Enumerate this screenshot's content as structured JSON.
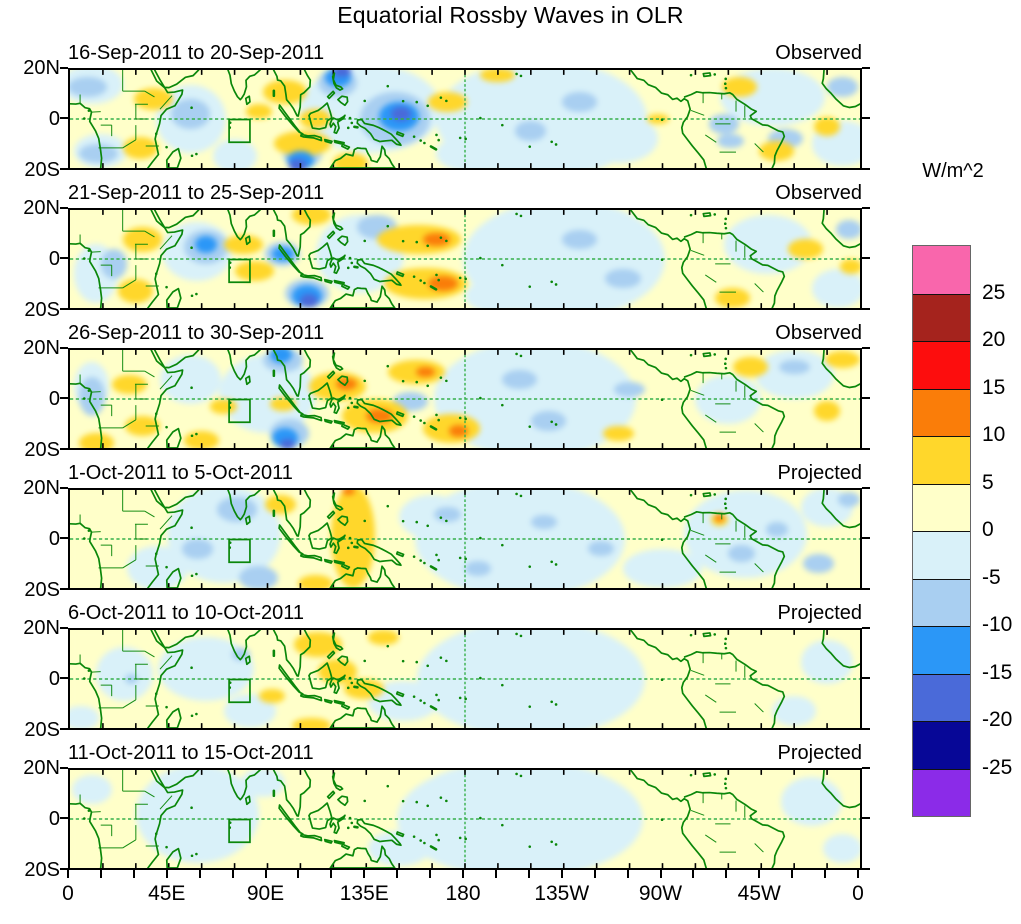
{
  "title": "Equatorial Rossby Waves in OLR",
  "colorbar": {
    "title": "W/m^2",
    "tick_labels": [
      "25",
      "20",
      "15",
      "10",
      "5",
      "0",
      "-5",
      "-10",
      "-15",
      "-20",
      "-25"
    ],
    "segment_colors_top_to_bottom": [
      "#F966AC",
      "#A5231D",
      "#FD0D0D",
      "#FA7D09",
      "#FFD72B",
      "#FFFFC9",
      "#D9F1F9",
      "#A9CFF1",
      "#2B97F7",
      "#4A6AD9",
      "#070797",
      "#8B2BE8"
    ]
  },
  "x_axis": {
    "tick_labels": [
      "0",
      "45E",
      "90E",
      "135E",
      "180",
      "135W",
      "90W",
      "45W",
      "0"
    ]
  },
  "y_axis": {
    "tick_labels": [
      "20N",
      "0",
      "20S"
    ]
  },
  "map_style": {
    "coastline_color": "#0A870A",
    "gridline_color": "#35B04A",
    "base_fill": "#FFFFC9",
    "marker_box": {
      "lon_min": 72.5,
      "lon_max": 82,
      "lat_min": -9.5,
      "lat_max": -0.2
    }
  },
  "palette": {
    "y1": "#FFFFC9",
    "c1": "#D9F1F9",
    "b1": "#A9CFF1",
    "b2": "#2B97F7",
    "b3": "#4A6AD9",
    "b4": "#070797",
    "pr": "#8B2BE8",
    "g1": "#FFD72B",
    "o1": "#FA7D09",
    "r1": "#FD0D0D",
    "dr": "#A5231D",
    "pk": "#F966AC"
  },
  "chart_data": {
    "type": "heatmap",
    "subtype": "filled-contour longitude-latitude anomaly maps",
    "units": "W/m^2",
    "lon_range": [
      0,
      360
    ],
    "lat_range": [
      -20,
      20
    ],
    "contour_levels": [
      -25,
      -20,
      -15,
      -10,
      -5,
      0,
      5,
      10,
      15,
      20,
      25
    ],
    "dashed_reference_lines": {
      "equator_lat": 0,
      "dateline_lon": 180
    },
    "panels": [
      {
        "date_range": "16-Sep-2011 to 20-Sep-2011",
        "source": "Observed",
        "blobs": [
          [
            55,
            0,
            16,
            14,
            "c1"
          ],
          [
            10,
            14,
            14,
            8,
            "c1"
          ],
          [
            14,
            -13,
            12,
            7,
            "c1"
          ],
          [
            75,
            -15,
            10,
            7,
            "c1"
          ],
          [
            137,
            4,
            32,
            18,
            "c1"
          ],
          [
            215,
            0,
            48,
            24,
            "c1"
          ],
          [
            320,
            9,
            24,
            12,
            "c1"
          ],
          [
            352,
            -10,
            14,
            9,
            "c1"
          ],
          [
            185,
            -14,
            18,
            8,
            "c1"
          ],
          [
            250,
            -8,
            18,
            10,
            "c1"
          ],
          [
            8,
            13,
            9,
            4,
            "b1"
          ],
          [
            13,
            -14,
            9,
            4,
            "b1"
          ],
          [
            55,
            2,
            9,
            6,
            "b1"
          ],
          [
            148,
            0,
            16,
            11,
            "b1"
          ],
          [
            122,
            15,
            9,
            6,
            "b1"
          ],
          [
            106,
            -14,
            9,
            6,
            "b1"
          ],
          [
            298,
            -2,
            7,
            4,
            "b1"
          ],
          [
            301,
            -9,
            6,
            3,
            "b1"
          ],
          [
            326,
            -8,
            8,
            4,
            "b1"
          ],
          [
            352,
            13,
            7,
            4,
            "b1"
          ],
          [
            232,
            7,
            8,
            4,
            "b1"
          ],
          [
            210,
            -5,
            7,
            4,
            "b1"
          ],
          [
            38,
            8,
            9,
            4.5,
            "g1"
          ],
          [
            32,
            -12,
            8,
            4.5,
            "g1"
          ],
          [
            98,
            11,
            10,
            5,
            "g1"
          ],
          [
            112,
            0,
            7,
            4,
            "g1"
          ],
          [
            106,
            -10,
            13,
            5,
            "g1"
          ],
          [
            128,
            -18,
            8,
            4,
            "g1"
          ],
          [
            86,
            3,
            6,
            3,
            "g1"
          ],
          [
            305,
            13,
            8,
            4,
            "g1"
          ],
          [
            268,
            0,
            5,
            2,
            "g1"
          ],
          [
            322,
            -13,
            8,
            4,
            "g1"
          ],
          [
            345,
            -3,
            6,
            4,
            "g1"
          ],
          [
            172,
            7,
            9,
            4,
            "g1"
          ],
          [
            195,
            18,
            8,
            3,
            "g1"
          ],
          [
            150,
            1,
            9,
            6,
            "b2"
          ],
          [
            122,
            17,
            6,
            4,
            "b2"
          ],
          [
            105,
            -17,
            6,
            4,
            "b2"
          ],
          [
            151,
            2,
            4.5,
            3,
            "b3"
          ],
          [
            124,
            19.5,
            4,
            2.5,
            "b3"
          ],
          [
            104,
            -19,
            4,
            2.5,
            "b3"
          ]
        ]
      },
      {
        "date_range": "21-Sep-2011 to 25-Sep-2011",
        "source": "Observed",
        "blobs": [
          [
            58,
            3,
            16,
            12,
            "c1"
          ],
          [
            12,
            -6,
            10,
            12,
            "c1"
          ],
          [
            225,
            0,
            46,
            24,
            "c1"
          ],
          [
            318,
            6,
            20,
            12,
            "c1"
          ],
          [
            350,
            -12,
            12,
            8,
            "c1"
          ],
          [
            132,
            2,
            20,
            16,
            "c1"
          ],
          [
            195,
            -15,
            15,
            7,
            "c1"
          ],
          [
            62,
            5,
            10,
            7,
            "b1"
          ],
          [
            97,
            2,
            8,
            5,
            "b1"
          ],
          [
            108,
            -14,
            10,
            6,
            "b1"
          ],
          [
            140,
            13,
            9,
            5,
            "b1"
          ],
          [
            20,
            -2,
            6,
            6,
            "b1"
          ],
          [
            232,
            8,
            8,
            4,
            "b1"
          ],
          [
            252,
            -8,
            8,
            4,
            "b1"
          ],
          [
            355,
            12,
            6,
            4,
            "b1"
          ],
          [
            33,
            8,
            9,
            5,
            "g1"
          ],
          [
            30,
            -13,
            8,
            5,
            "g1"
          ],
          [
            79,
            6,
            9,
            4,
            "g1"
          ],
          [
            84,
            -5,
            9,
            4,
            "g1"
          ],
          [
            110,
            18,
            9,
            4,
            "g1"
          ],
          [
            159,
            8,
            19,
            6,
            "g1"
          ],
          [
            162,
            -10,
            19,
            6.5,
            "g1"
          ],
          [
            335,
            4,
            8,
            4,
            "g1"
          ],
          [
            302,
            -16,
            8,
            4,
            "g1"
          ],
          [
            356,
            -3,
            5,
            3,
            "g1"
          ],
          [
            167,
            8,
            6,
            2.8,
            "o1"
          ],
          [
            170,
            -10,
            7,
            3.2,
            "o1"
          ],
          [
            62,
            6,
            5,
            3.5,
            "b2"
          ],
          [
            97,
            2,
            5,
            3,
            "b2"
          ],
          [
            108,
            -15,
            7,
            4.5,
            "b2"
          ],
          [
            109,
            -17,
            4,
            2.8,
            "b3"
          ]
        ]
      },
      {
        "date_range": "26-Sep-2011 to 30-Sep-2011",
        "source": "Observed",
        "blobs": [
          [
            55,
            8,
            14,
            10,
            "c1"
          ],
          [
            90,
            2,
            22,
            16,
            "c1"
          ],
          [
            212,
            0,
            46,
            24,
            "c1"
          ],
          [
            330,
            10,
            18,
            10,
            "c1"
          ],
          [
            300,
            0,
            15,
            10,
            "c1"
          ],
          [
            10,
            5,
            8,
            10,
            "c1"
          ],
          [
            10,
            1,
            6,
            8,
            "b1"
          ],
          [
            97,
            16,
            9,
            5,
            "b1"
          ],
          [
            100,
            -14,
            9,
            6,
            "b1"
          ],
          [
            205,
            8,
            8,
            4,
            "b1"
          ],
          [
            218,
            -9,
            8,
            4,
            "b1"
          ],
          [
            330,
            13,
            7,
            3,
            "b1"
          ],
          [
            155,
            -1,
            8,
            4,
            "b1"
          ],
          [
            255,
            4,
            7,
            3,
            "b1"
          ],
          [
            27,
            6,
            8,
            4,
            "g1"
          ],
          [
            33,
            -11,
            8,
            4,
            "g1"
          ],
          [
            12,
            -18,
            8,
            4,
            "g1"
          ],
          [
            70,
            -3,
            6,
            3,
            "g1"
          ],
          [
            60,
            -17,
            8,
            4,
            "g1"
          ],
          [
            122,
            5,
            13,
            6,
            "g1"
          ],
          [
            139,
            -7,
            15,
            7,
            "g1"
          ],
          [
            158,
            11,
            13,
            5,
            "g1"
          ],
          [
            174,
            -12,
            13,
            6,
            "g1"
          ],
          [
            310,
            13,
            8,
            4,
            "g1"
          ],
          [
            352,
            16,
            8,
            3.5,
            "g1"
          ],
          [
            345,
            -5,
            6,
            4,
            "g1"
          ],
          [
            250,
            -14,
            7,
            3,
            "g1"
          ],
          [
            97,
            -2,
            6,
            3,
            "g1"
          ],
          [
            126,
            6,
            5,
            2.5,
            "o1"
          ],
          [
            141,
            -7,
            6,
            3,
            "o1"
          ],
          [
            162,
            11,
            4.5,
            2.2,
            "o1"
          ],
          [
            177,
            -13,
            4.5,
            2.5,
            "o1"
          ],
          [
            98,
            -16,
            6,
            4,
            "b2"
          ],
          [
            96,
            18,
            5,
            3.5,
            "b2"
          ],
          [
            99,
            -18.5,
            3.5,
            2.2,
            "b3"
          ]
        ]
      },
      {
        "date_range": "1-Oct-2011 to 5-Oct-2011",
        "source": "Projected",
        "blobs": [
          [
            70,
            2,
            26,
            20,
            "c1"
          ],
          [
            40,
            -12,
            14,
            9,
            "c1"
          ],
          [
            205,
            0,
            48,
            24,
            "c1"
          ],
          [
            165,
            9,
            15,
            9,
            "c1"
          ],
          [
            308,
            2,
            28,
            18,
            "c1"
          ],
          [
            345,
            13,
            12,
            8,
            "c1"
          ],
          [
            270,
            -12,
            18,
            8,
            "c1"
          ],
          [
            76,
            12,
            9,
            5,
            "b1"
          ],
          [
            86,
            -16,
            9,
            5,
            "b1"
          ],
          [
            58,
            -4,
            7,
            4,
            "b1"
          ],
          [
            172,
            10,
            6,
            3,
            "b1"
          ],
          [
            186,
            -12,
            6,
            3,
            "b1"
          ],
          [
            216,
            7,
            6,
            3,
            "b1"
          ],
          [
            242,
            -4,
            6,
            3,
            "b1"
          ],
          [
            306,
            -6,
            6,
            3.5,
            "b1"
          ],
          [
            322,
            4,
            5,
            3,
            "b1"
          ],
          [
            341,
            -10,
            7,
            4,
            "b1"
          ],
          [
            355,
            16,
            5,
            3,
            "b1"
          ],
          [
            129,
            1,
            10,
            21,
            "g1"
          ],
          [
            112,
            -18,
            8,
            3.5,
            "g1"
          ],
          [
            96,
            14,
            7,
            4,
            "g1"
          ],
          [
            296,
            8,
            4,
            2.6,
            "g1"
          ],
          [
            127,
            19.5,
            3,
            1.6,
            "o1"
          ],
          [
            296,
            8.5,
            2.2,
            1.6,
            "o1"
          ]
        ]
      },
      {
        "date_range": "6-Oct-2011 to 10-Oct-2011",
        "source": "Projected",
        "blobs": [
          [
            25,
            2,
            13,
            11,
            "c1"
          ],
          [
            62,
            4,
            22,
            13,
            "c1"
          ],
          [
            82,
            -13,
            12,
            7,
            "c1"
          ],
          [
            210,
            0,
            52,
            24,
            "c1"
          ],
          [
            152,
            -9,
            16,
            8,
            "c1"
          ],
          [
            345,
            7,
            12,
            9,
            "c1"
          ],
          [
            330,
            -13,
            10,
            6,
            "c1"
          ],
          [
            5,
            -16,
            8,
            5,
            "c1"
          ],
          [
            78,
            10,
            4,
            2.5,
            "b1"
          ],
          [
            28,
            0,
            3,
            2,
            "b1"
          ],
          [
            113,
            14,
            11,
            5,
            "g1"
          ],
          [
            122,
            3,
            9,
            5,
            "g1"
          ],
          [
            134,
            -4,
            9,
            4,
            "g1"
          ],
          [
            110,
            -19,
            9,
            3,
            "g1"
          ],
          [
            143,
            17,
            7,
            3,
            "g1"
          ],
          [
            92,
            -7,
            6,
            3,
            "g1"
          ]
        ]
      },
      {
        "date_range": "11-Oct-2011 to 15-Oct-2011",
        "source": "Projected",
        "blobs": [
          [
            58,
            2,
            28,
            20,
            "c1"
          ],
          [
            10,
            12,
            9,
            6,
            "c1"
          ],
          [
            205,
            0,
            56,
            24,
            "c1"
          ],
          [
            338,
            7,
            14,
            10,
            "c1"
          ],
          [
            352,
            -12,
            9,
            6,
            "c1"
          ],
          [
            88,
            15,
            10,
            6,
            "c1"
          ],
          [
            150,
            -12,
            14,
            7,
            "c1"
          ]
        ]
      }
    ]
  }
}
